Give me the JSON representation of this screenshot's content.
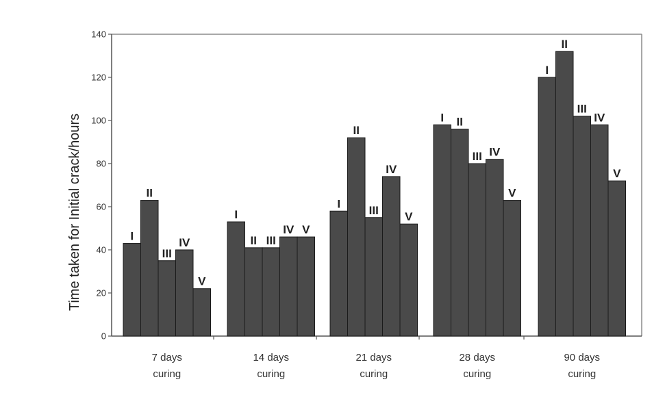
{
  "chart_data": {
    "type": "bar",
    "ylabel": "Time taken for Initial crack/hours",
    "xlabel": "",
    "ylim": [
      0,
      140
    ],
    "y_ticks": [
      0,
      20,
      40,
      60,
      80,
      100,
      120,
      140
    ],
    "grid": false,
    "legend": "none",
    "categories": [
      {
        "line1": "7 days",
        "line2": "curing"
      },
      {
        "line1": "14 days",
        "line2": "curing"
      },
      {
        "line1": "21 days",
        "line2": "curing"
      },
      {
        "line1": "28 days",
        "line2": "curing"
      },
      {
        "line1": "90 days",
        "line2": "curing"
      }
    ],
    "series": [
      {
        "label": "I",
        "values": [
          43,
          53,
          58,
          98,
          120
        ]
      },
      {
        "label": "II",
        "values": [
          63,
          41,
          92,
          96,
          132
        ]
      },
      {
        "label": "III",
        "values": [
          35,
          41,
          55,
          80,
          102
        ]
      },
      {
        "label": "IV",
        "values": [
          40,
          46,
          74,
          82,
          98
        ]
      },
      {
        "label": "V",
        "values": [
          22,
          46,
          52,
          63,
          72
        ]
      }
    ],
    "colors": {
      "bar_fill": "#4a4a4a",
      "bar_stroke": "#1a1a1a",
      "axis": "#555555",
      "frame": "#8c8c8c",
      "background": "#ffffff"
    }
  }
}
